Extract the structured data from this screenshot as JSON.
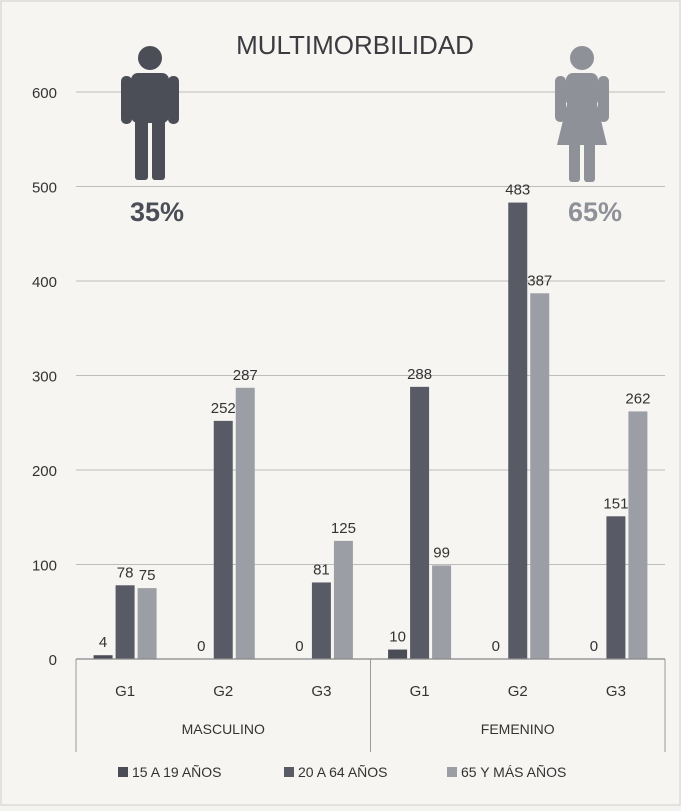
{
  "chart_data": {
    "type": "bar",
    "title": "MULTIMORBILIDAD",
    "groups": [
      {
        "label": "MASCULINO",
        "categories": [
          "G1",
          "G2",
          "G3"
        ]
      },
      {
        "label": "FEMENINO",
        "categories": [
          "G1",
          "G2",
          "G3"
        ]
      }
    ],
    "series": [
      {
        "name": "15 A 19 AÑOS",
        "color": "#4a4d56",
        "values": [
          4,
          0,
          0,
          10,
          0,
          0
        ]
      },
      {
        "name": "20 A 64 AÑOS",
        "color": "#585b66",
        "values": [
          78,
          252,
          81,
          288,
          483,
          151
        ]
      },
      {
        "name": "65 Y MÁS AÑOS",
        "color": "#9c9ea5",
        "values": [
          75,
          287,
          125,
          99,
          387,
          262
        ]
      }
    ],
    "ylim": [
      0,
      600
    ],
    "yticks": [
      0,
      100,
      200,
      300,
      400,
      500,
      600
    ],
    "grid": true,
    "legend_position": "bottom",
    "annotations": {
      "male": {
        "icon": "male-person-icon",
        "percent": "35%",
        "color": "#4b4e57"
      },
      "female": {
        "icon": "female-person-icon",
        "percent": "65%",
        "color": "#8f9198"
      }
    }
  }
}
